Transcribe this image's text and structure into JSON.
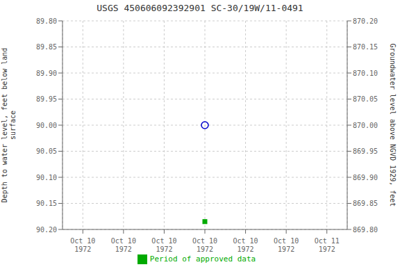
{
  "chart_data": {
    "type": "scatter",
    "title": "USGS 450606092392901 SC-30/19W/11-0491",
    "ylabel": "Depth to water level, feet below land\nsurface",
    "y2label": "Groundwater level above NGVD 1929, feet",
    "categories": [
      "Oct 10\n1972",
      "Oct 10\n1972",
      "Oct 10\n1972",
      "Oct 10\n1972",
      "Oct 10\n1972",
      "Oct 10\n1972",
      "Oct 11\n1972"
    ],
    "series": [
      {
        "values": [
          null,
          null,
          null,
          90.0,
          null,
          null,
          null
        ],
        "color": "#0000cc",
        "marker": "circle"
      },
      {
        "name": "Period of approved data",
        "values": [
          null,
          null,
          null,
          90.185,
          null,
          null,
          null
        ],
        "color": "#00aa00",
        "marker": "square"
      }
    ],
    "ylim": [
      90.2,
      89.8
    ],
    "yticks": [
      {
        "value": 89.8,
        "label": "89.80"
      },
      89.85,
      {
        "value": 89.9,
        "label": "89.90"
      },
      89.95,
      {
        "value": 90.0,
        "label": "90.00"
      },
      90.05,
      {
        "value": 90.1,
        "label": "90.10"
      },
      90.15,
      {
        "value": 90.2,
        "label": "90.20"
      }
    ],
    "y2lim": [
      869.8,
      870.2
    ],
    "y2ticks": [
      {
        "value": 869.8,
        "label": "869.80"
      },
      869.85,
      {
        "value": 869.9,
        "label": "869.90"
      },
      869.95,
      {
        "value": 870.0,
        "label": "870.00"
      },
      870.05,
      {
        "value": 870.1,
        "label": "870.10"
      },
      870.15,
      {
        "value": 870.2,
        "label": "870.20"
      }
    ],
    "grid": true,
    "legend": "bottom"
  }
}
